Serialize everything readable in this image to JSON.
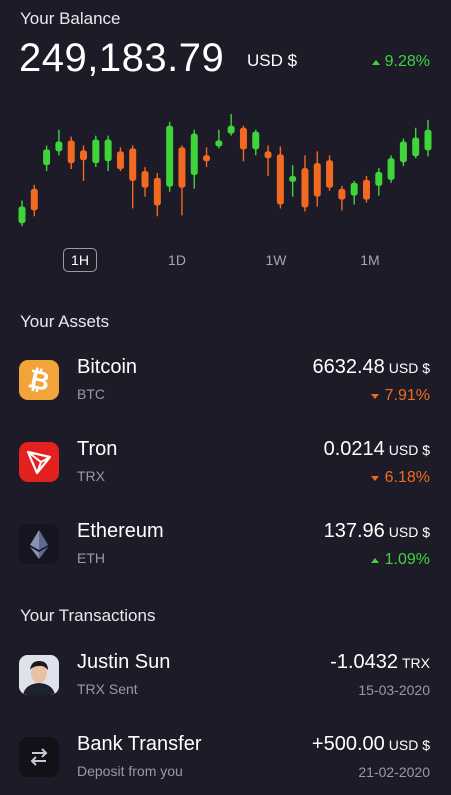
{
  "balance": {
    "label": "Your Balance",
    "amount": "249,183.79",
    "currency": "USD $",
    "change": "9.28%",
    "change_direction": "up"
  },
  "colors": {
    "background": "#1c1b27",
    "up": "#3fd43a",
    "down": "#f26a22"
  },
  "chart_data": {
    "type": "candlestick",
    "series_colors": {
      "up": "#3fd43a",
      "down": "#f26a22"
    },
    "candles": [
      {
        "o": 13,
        "c": 30,
        "h": 36,
        "l": 10
      },
      {
        "o": 48,
        "c": 26,
        "h": 52,
        "l": 20
      },
      {
        "o": 72,
        "c": 88,
        "h": 92,
        "l": 66
      },
      {
        "o": 86,
        "c": 96,
        "h": 108,
        "l": 82
      },
      {
        "o": 97,
        "c": 74,
        "h": 101,
        "l": 68
      },
      {
        "o": 87,
        "c": 77,
        "h": 92,
        "l": 56
      },
      {
        "o": 74,
        "c": 98,
        "h": 102,
        "l": 70
      },
      {
        "o": 76,
        "c": 98,
        "h": 102,
        "l": 66
      },
      {
        "o": 86,
        "c": 68,
        "h": 90,
        "l": 66
      },
      {
        "o": 89,
        "c": 56,
        "h": 92,
        "l": 28
      },
      {
        "o": 66,
        "c": 49,
        "h": 70,
        "l": 40
      },
      {
        "o": 59,
        "c": 31,
        "h": 64,
        "l": 20
      },
      {
        "o": 50,
        "c": 112,
        "h": 116,
        "l": 45
      },
      {
        "o": 90,
        "c": 49,
        "h": 92,
        "l": 21
      },
      {
        "o": 62,
        "c": 104,
        "h": 108,
        "l": 48
      },
      {
        "o": 82,
        "c": 76,
        "h": 90,
        "l": 70
      },
      {
        "o": 91,
        "c": 97,
        "h": 108,
        "l": 89
      },
      {
        "o": 104,
        "c": 112,
        "h": 124,
        "l": 102
      },
      {
        "o": 110,
        "c": 88,
        "h": 112,
        "l": 76
      },
      {
        "o": 88,
        "c": 106,
        "h": 108,
        "l": 82
      },
      {
        "o": 86,
        "c": 79,
        "h": 92,
        "l": 61
      },
      {
        "o": 83,
        "c": 32,
        "h": 91,
        "l": 28
      },
      {
        "o": 55,
        "c": 61,
        "h": 72,
        "l": 40
      },
      {
        "o": 69,
        "c": 29,
        "h": 82,
        "l": 25
      },
      {
        "o": 74,
        "c": 40,
        "h": 86,
        "l": 30
      },
      {
        "o": 77,
        "c": 49,
        "h": 82,
        "l": 46
      },
      {
        "o": 48,
        "c": 37,
        "h": 51,
        "l": 26
      },
      {
        "o": 41,
        "c": 54,
        "h": 56,
        "l": 32
      },
      {
        "o": 57,
        "c": 37,
        "h": 61,
        "l": 34
      },
      {
        "o": 51,
        "c": 65,
        "h": 69,
        "l": 41
      },
      {
        "o": 57,
        "c": 79,
        "h": 82,
        "l": 54
      },
      {
        "o": 75,
        "c": 96,
        "h": 99,
        "l": 71
      },
      {
        "o": 81,
        "c": 100,
        "h": 110,
        "l": 79
      },
      {
        "o": 87,
        "c": 108,
        "h": 118,
        "l": 81
      }
    ]
  },
  "timeframes": [
    {
      "label": "1H",
      "active": true
    },
    {
      "label": "1D",
      "active": false
    },
    {
      "label": "1W",
      "active": false
    },
    {
      "label": "1M",
      "active": false
    }
  ],
  "assets": {
    "title": "Your Assets",
    "items": [
      {
        "name": "Bitcoin",
        "symbol": "BTC",
        "value": "6632.48",
        "unit": "USD $",
        "change": "7.91%",
        "direction": "down",
        "icon": "bitcoin-icon"
      },
      {
        "name": "Tron",
        "symbol": "TRX",
        "value": "0.0214",
        "unit": "USD $",
        "change": "6.18%",
        "direction": "down",
        "icon": "tron-icon"
      },
      {
        "name": "Ethereum",
        "symbol": "ETH",
        "value": "137.96",
        "unit": "USD $",
        "change": "1.09%",
        "direction": "up",
        "icon": "ethereum-icon"
      }
    ]
  },
  "transactions": {
    "title": "Your Transactions",
    "items": [
      {
        "name": "Justin Sun",
        "subtitle": "TRX Sent",
        "value": "-1.0432",
        "unit": "TRX",
        "date": "15-03-2020",
        "icon": "avatar"
      },
      {
        "name": "Bank Transfer",
        "subtitle": "Deposit from you",
        "value": "+500.00",
        "unit": "USD $",
        "date": "21-02-2020",
        "icon": "transfer-icon"
      }
    ]
  }
}
